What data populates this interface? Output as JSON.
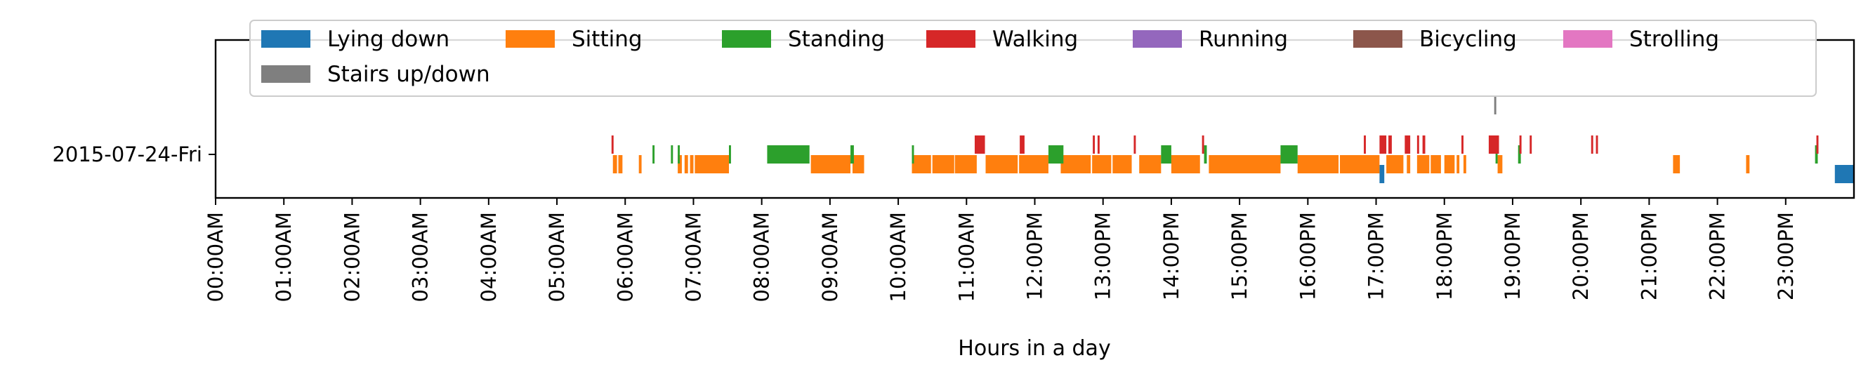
{
  "chart_data": {
    "type": "timeline",
    "xlabel": "Hours in a day",
    "x_range_hours": [
      0,
      24
    ],
    "x_ticks": [
      "00:00AM",
      "01:00AM",
      "02:00AM",
      "03:00AM",
      "04:00AM",
      "05:00AM",
      "06:00AM",
      "07:00AM",
      "08:00AM",
      "09:00AM",
      "10:00AM",
      "11:00AM",
      "12:00PM",
      "13:00PM",
      "14:00PM",
      "15:00PM",
      "16:00PM",
      "17:00PM",
      "18:00PM",
      "19:00PM",
      "20:00PM",
      "21:00PM",
      "22:00PM",
      "23:00PM"
    ],
    "y_categories": [
      "2015-07-24-Fri"
    ],
    "legend_position": "top",
    "series": [
      {
        "name": "Lying down",
        "color": "#1f77b4",
        "row": -2,
        "segments": [
          [
            17.05,
            17.12
          ],
          [
            23.72,
            24.0
          ]
        ]
      },
      {
        "name": "Sitting",
        "color": "#ff7f0e",
        "row": -1,
        "segments": [
          [
            5.82,
            5.88
          ],
          [
            5.9,
            5.96
          ],
          [
            6.2,
            6.24
          ],
          [
            6.77,
            6.83
          ],
          [
            6.87,
            6.92
          ],
          [
            6.95,
            7.0
          ],
          [
            7.02,
            7.52
          ],
          [
            8.72,
            9.3
          ],
          [
            9.33,
            9.5
          ],
          [
            10.2,
            10.48
          ],
          [
            10.5,
            10.82
          ],
          [
            10.83,
            11.15
          ],
          [
            11.28,
            11.75
          ],
          [
            11.77,
            12.2
          ],
          [
            12.38,
            12.82
          ],
          [
            12.84,
            13.12
          ],
          [
            13.14,
            13.42
          ],
          [
            13.53,
            13.85
          ],
          [
            14.0,
            14.42
          ],
          [
            14.55,
            15.6
          ],
          [
            15.85,
            16.45
          ],
          [
            16.47,
            17.05
          ],
          [
            17.15,
            17.4
          ],
          [
            17.45,
            17.5
          ],
          [
            17.6,
            17.78
          ],
          [
            17.8,
            17.95
          ],
          [
            18.0,
            18.15
          ],
          [
            18.18,
            18.22
          ],
          [
            18.28,
            18.32
          ],
          [
            18.78,
            18.85
          ],
          [
            21.35,
            21.45
          ],
          [
            22.42,
            22.47
          ]
        ]
      },
      {
        "name": "Standing",
        "color": "#2ca02c",
        "row": 0,
        "segments": [
          [
            6.4,
            6.43
          ],
          [
            6.67,
            6.7
          ],
          [
            6.77,
            6.8
          ],
          [
            7.52,
            7.55
          ],
          [
            8.08,
            8.7
          ],
          [
            9.3,
            9.35
          ],
          [
            10.2,
            10.23
          ],
          [
            12.2,
            12.42
          ],
          [
            13.85,
            14.0
          ],
          [
            14.48,
            14.52
          ],
          [
            15.6,
            15.85
          ],
          [
            18.75,
            18.78
          ],
          [
            19.08,
            19.12
          ],
          [
            23.43,
            23.47
          ]
        ]
      },
      {
        "name": "Walking",
        "color": "#d62728",
        "row": 1,
        "segments": [
          [
            5.8,
            5.83
          ],
          [
            11.12,
            11.27
          ],
          [
            11.78,
            11.85
          ],
          [
            12.85,
            12.88
          ],
          [
            12.92,
            12.95
          ],
          [
            13.45,
            13.48
          ],
          [
            14.45,
            14.48
          ],
          [
            16.82,
            16.85
          ],
          [
            17.05,
            17.15
          ],
          [
            17.18,
            17.23
          ],
          [
            17.42,
            17.5
          ],
          [
            17.6,
            17.63
          ],
          [
            17.68,
            17.72
          ],
          [
            18.25,
            18.28
          ],
          [
            18.65,
            18.8
          ],
          [
            19.1,
            19.13
          ],
          [
            19.25,
            19.28
          ],
          [
            20.15,
            20.18
          ],
          [
            20.22,
            20.25
          ],
          [
            23.45,
            23.48
          ]
        ]
      },
      {
        "name": "Running",
        "color": "#9467bd",
        "row": 2,
        "segments": []
      },
      {
        "name": "Bicycling",
        "color": "#8c564b",
        "row": 3,
        "segments": []
      },
      {
        "name": "Strolling",
        "color": "#e377c2",
        "row": 4,
        "segments": []
      },
      {
        "name": "Stairs up/down",
        "color": "#7f7f7f",
        "row": 5,
        "segments": [
          [
            18.73,
            18.76
          ]
        ]
      }
    ]
  }
}
